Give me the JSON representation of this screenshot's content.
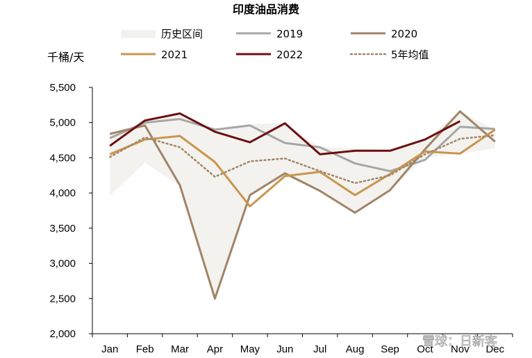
{
  "watermark": "雪球：日新客",
  "chart_data": {
    "type": "line",
    "title": "印度油品消费",
    "unit_label": "千桶/天",
    "categories": [
      "Jan",
      "Feb",
      "Mar",
      "Apr",
      "May",
      "Jun",
      "Jul",
      "Aug",
      "Sep",
      "Oct",
      "Nov",
      "Dec"
    ],
    "ylim": [
      2000,
      5500
    ],
    "yticks": [
      {
        "value": 2000,
        "label": "2,000"
      },
      {
        "value": 2500,
        "label": "2,500"
      },
      {
        "value": 3000,
        "label": "3,000"
      },
      {
        "value": 3500,
        "label": "3,500"
      },
      {
        "value": 4000,
        "label": "4,000"
      },
      {
        "value": 4500,
        "label": "4,500"
      },
      {
        "value": 5000,
        "label": "5,000"
      },
      {
        "value": 5500,
        "label": "5,500"
      }
    ],
    "grid": false,
    "legend": {
      "placement": "top",
      "range_label": "历史区间",
      "range_color": "#f3f2ee"
    },
    "range": {
      "min": [
        3960,
        4430,
        4100,
        2500,
        3970,
        4230,
        4040,
        3720,
        4040,
        4500,
        4560,
        4630
      ],
      "max": [
        4840,
        5010,
        5130,
        4900,
        4980,
        4990,
        4650,
        4640,
        4600,
        4760,
        5160,
        4900
      ]
    },
    "series": [
      {
        "name": "2019",
        "color": "#a6a6a6",
        "dash": "",
        "width": 3,
        "values": [
          4780,
          5000,
          5050,
          4900,
          4960,
          4710,
          4650,
          4420,
          4310,
          4470,
          4940,
          4910
        ]
      },
      {
        "name": "2020",
        "color": "#a08466",
        "dash": "",
        "width": 3,
        "values": [
          4840,
          4960,
          4110,
          2500,
          3970,
          4280,
          4030,
          3720,
          4040,
          4620,
          5160,
          4730
        ]
      },
      {
        "name": "2021",
        "color": "#c9954f",
        "dash": "",
        "width": 3,
        "values": [
          4550,
          4760,
          4810,
          4440,
          3810,
          4240,
          4300,
          3970,
          4270,
          4590,
          4560,
          4900
        ]
      },
      {
        "name": "2022",
        "color": "#6b0f12",
        "dash": "",
        "width": 3,
        "values": [
          4670,
          5030,
          5130,
          4870,
          4720,
          4990,
          4550,
          4600,
          4600,
          4760,
          5020,
          null
        ]
      },
      {
        "name": "5年均值",
        "color": "#a08466",
        "dash": "2,4",
        "width": 2.5,
        "values": [
          4510,
          4790,
          4650,
          4230,
          4450,
          4490,
          4310,
          4140,
          4250,
          4550,
          4770,
          4820
        ]
      }
    ]
  }
}
